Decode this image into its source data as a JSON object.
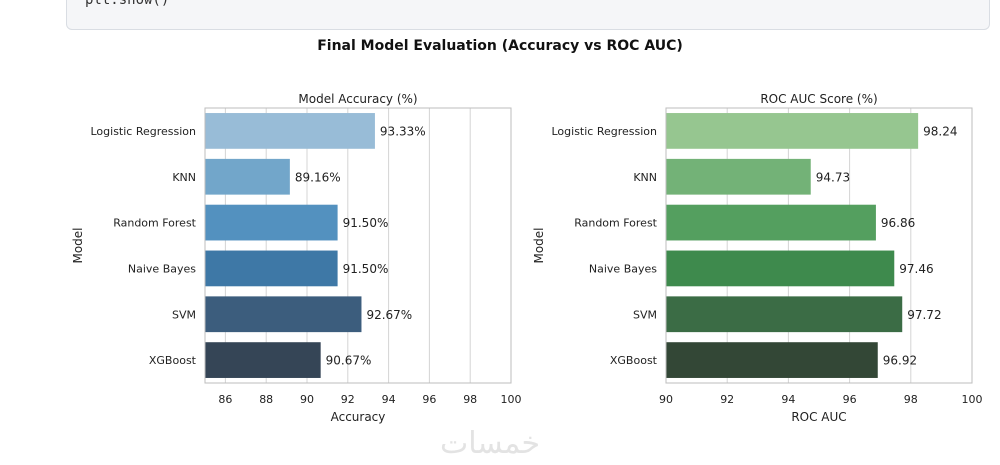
{
  "code": {
    "line": "plt.show()"
  },
  "suptitle": "Final Model Evaluation (Accuracy vs ROC AUC)",
  "watermark": "خمسات",
  "chart_data": [
    {
      "type": "bar",
      "orientation": "horizontal",
      "title": "Model Accuracy (%)",
      "xlabel": "Accuracy",
      "ylabel": "Model",
      "categories": [
        "Logistic Regression",
        "KNN",
        "Random Forest",
        "Naive Bayes",
        "SVM",
        "XGBoost"
      ],
      "values": [
        93.33,
        89.16,
        91.5,
        91.5,
        92.67,
        90.67
      ],
      "data_labels": [
        "93.33%",
        "89.16%",
        "91.50%",
        "91.50%",
        "92.67%",
        "90.67%"
      ],
      "xlim": [
        85,
        100
      ],
      "xticks": [
        86,
        88,
        90,
        92,
        94,
        96,
        98,
        100
      ],
      "grid": "vertical",
      "colors": [
        "#98bcd7",
        "#72a6ca",
        "#5391bf",
        "#3e78a6",
        "#3c5d7d",
        "#354556"
      ]
    },
    {
      "type": "bar",
      "orientation": "horizontal",
      "title": "ROC AUC Score (%)",
      "xlabel": "ROC AUC",
      "ylabel": "Model",
      "categories": [
        "Logistic Regression",
        "KNN",
        "Random Forest",
        "Naive Bayes",
        "SVM",
        "XGBoost"
      ],
      "values": [
        98.24,
        94.73,
        96.86,
        97.46,
        97.72,
        96.92
      ],
      "data_labels": [
        "98.24",
        "94.73",
        "96.86",
        "97.46",
        "97.72",
        "96.92"
      ],
      "xlim": [
        90,
        100
      ],
      "xticks": [
        90,
        92,
        94,
        96,
        98,
        100
      ],
      "grid": "vertical",
      "colors": [
        "#96c690",
        "#73b277",
        "#549f5f",
        "#3e8a4d",
        "#3b6c45",
        "#334736"
      ]
    }
  ]
}
